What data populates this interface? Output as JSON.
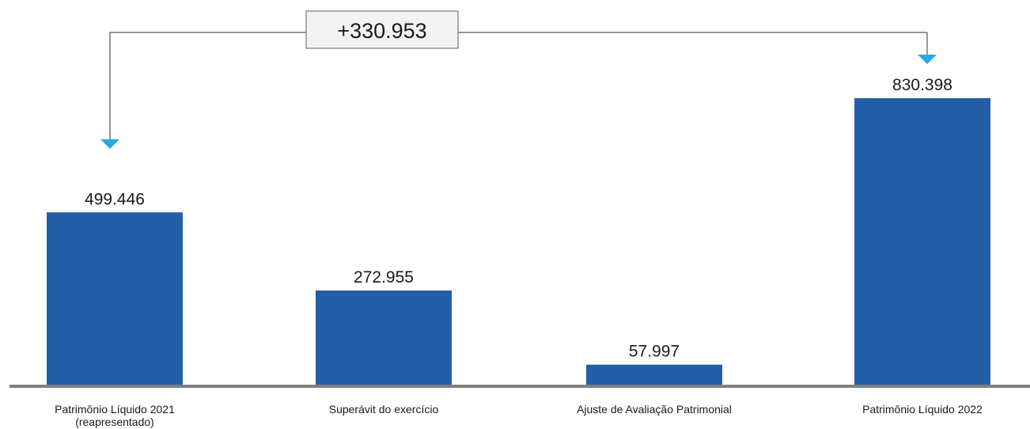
{
  "chart_data": {
    "type": "bar",
    "categories": [
      [
        "Patrimônio Líquido 2021",
        "(reapresentado)"
      ],
      [
        "Superávit do exercício"
      ],
      [
        "Ajuste de Avaliação Patrimonial"
      ],
      [
        "Patrimônio Líquido 2022"
      ]
    ],
    "values": [
      499446,
      272955,
      57997,
      830398
    ],
    "value_labels": [
      "499.446",
      "272.955",
      "57.997",
      "830.398"
    ],
    "bar_color": "#255ea8",
    "arrow_color": "#29a9e0",
    "difference": {
      "label": "+330.953",
      "from_index": 0,
      "to_index": 3
    }
  }
}
